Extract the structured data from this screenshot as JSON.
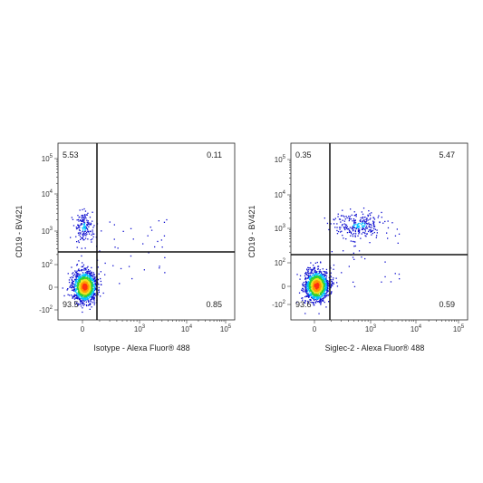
{
  "chart_data": [
    {
      "type": "scatter",
      "title": "",
      "xlabel": "Isotype - Alexa Fluor® 488",
      "ylabel": "CD19 - BV421",
      "scale": "biexponential",
      "x_ticks": [
        {
          "base": "-10",
          "exp": "2"
        },
        {
          "base": "0",
          "exp": ""
        },
        {
          "base": "10",
          "exp": "3"
        },
        {
          "base": "10",
          "exp": "4"
        },
        {
          "base": "10",
          "exp": "5"
        }
      ],
      "y_ticks": [
        {
          "base": "-10",
          "exp": "2"
        },
        {
          "base": "0",
          "exp": ""
        },
        {
          "base": "10",
          "exp": "2"
        },
        {
          "base": "10",
          "exp": "3"
        },
        {
          "base": "10",
          "exp": "4"
        },
        {
          "base": "10",
          "exp": "5"
        }
      ],
      "quadrants": {
        "upper_left": "5.53",
        "upper_right": "0.11",
        "lower_left": "93.5",
        "lower_right": "0.85"
      },
      "populations": [
        {
          "name": "",
          "x_center": 0,
          "y_center": 0,
          "count": 1300,
          "spread": "dense"
        },
        {
          "name": "",
          "x_center": 0,
          "y_center": 1200,
          "count": 160,
          "spread": "medium"
        }
      ]
    },
    {
      "type": "scatter",
      "title": "",
      "xlabel": "Siglec-2 - Alexa Fluor® 488",
      "ylabel": "CD19 - BV421",
      "scale": "biexponential",
      "x_ticks": [
        {
          "base": "-10",
          "exp": "2"
        },
        {
          "base": "0",
          "exp": ""
        },
        {
          "base": "10",
          "exp": "3"
        },
        {
          "base": "10",
          "exp": "4"
        },
        {
          "base": "10",
          "exp": "5"
        }
      ],
      "y_ticks": [
        {
          "base": "-10",
          "exp": "2"
        },
        {
          "base": "0",
          "exp": ""
        },
        {
          "base": "10",
          "exp": "2"
        },
        {
          "base": "10",
          "exp": "3"
        },
        {
          "base": "10",
          "exp": "4"
        },
        {
          "base": "10",
          "exp": "5"
        }
      ],
      "quadrants": {
        "upper_left": "0.35",
        "upper_right": "5.47",
        "lower_left": "93.6",
        "lower_right": "0.59"
      },
      "populations": [
        {
          "name": "",
          "x_center": 0,
          "y_center": 0,
          "count": 1300,
          "spread": "dense"
        },
        {
          "name": "",
          "x_center": 800,
          "y_center": 1100,
          "count": 260,
          "spread": "medium"
        }
      ]
    }
  ],
  "colors": {
    "density_low": "#1010d0",
    "density_mid": "#00c0ff",
    "density_high": "#30d030",
    "density_peak": "#ff3010",
    "gate_line": "#111111"
  }
}
